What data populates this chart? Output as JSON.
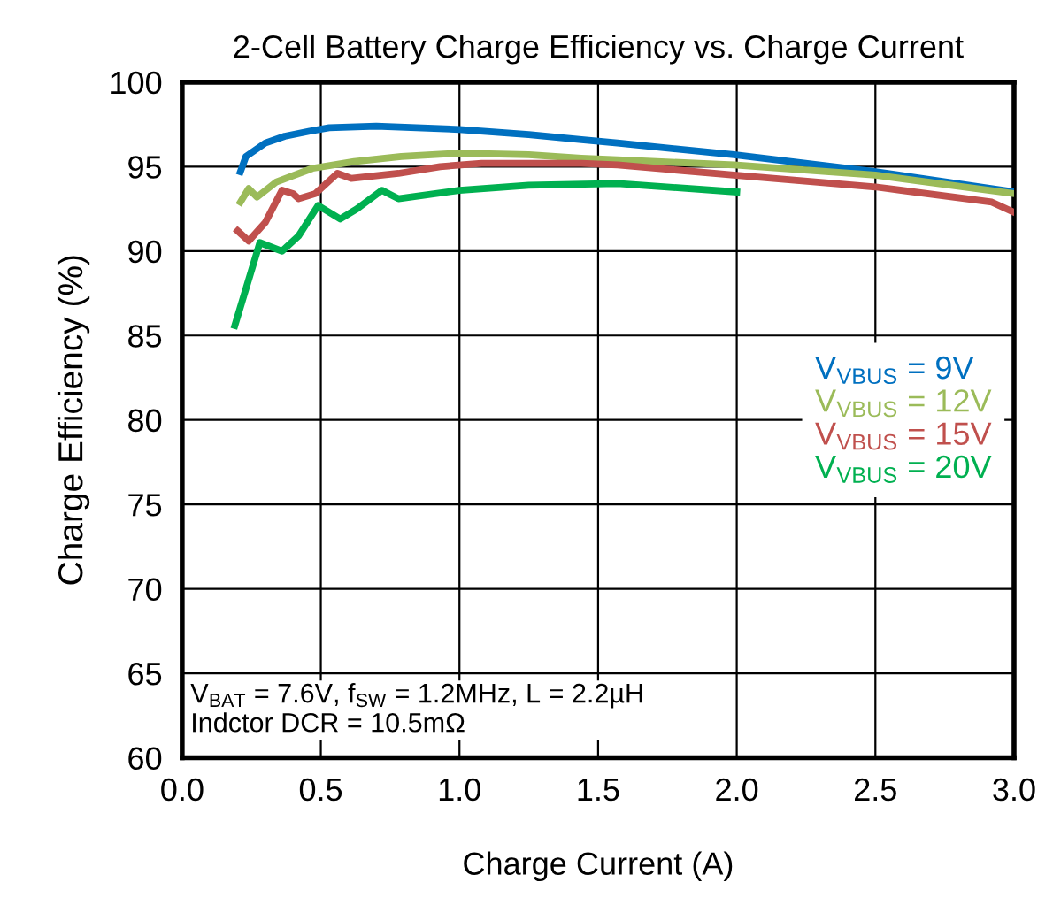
{
  "chart_data": {
    "type": "line",
    "title": "2-Cell Battery Charge Efficiency vs. Charge Current",
    "xlabel": "Charge Current (A)",
    "ylabel": "Charge Efficiency (%)",
    "xlim": [
      0,
      3
    ],
    "xticks": [
      {
        "value": 0,
        "label": "0.0"
      },
      0.5,
      {
        "value": 1,
        "label": "1.0"
      },
      1.5,
      {
        "value": 2,
        "label": "2.0"
      },
      2.5,
      {
        "value": 3,
        "label": "3.0"
      }
    ],
    "ylim": [
      60,
      100
    ],
    "yticks": [
      60,
      65,
      70,
      75,
      80,
      85,
      90,
      95,
      100
    ],
    "grid": true,
    "legend": "right",
    "line_style": "solid",
    "marker": "none",
    "annotations": [
      "V$_{BAT}$ = 7.6V, f$_{SW}$ = 1.2MHz, L = 2.2µH\nIndctor DCR = 10.5mΩ"
    ],
    "series": [
      {
        "name": "V$_{VBUS}$ = 9V",
        "color": "#0070c0",
        "x": [
          0.21,
          0.23,
          0.3,
          0.37,
          0.46,
          0.53,
          0.7,
          1.0,
          1.25,
          1.44,
          1.57,
          1.99,
          2.5,
          3.0
        ],
        "values": [
          94.7,
          95.6,
          96.4,
          96.8,
          97.1,
          97.3,
          97.4,
          97.2,
          96.9,
          96.6,
          96.4,
          95.7,
          94.7,
          93.5
        ]
      },
      {
        "name": "V$_{VBUS}$ = 12V",
        "color": "#9bbb59",
        "x": [
          0.21,
          0.24,
          0.27,
          0.34,
          0.47,
          0.62,
          0.79,
          1.0,
          1.25,
          1.44,
          1.57,
          1.99,
          2.5,
          3.0
        ],
        "values": [
          92.9,
          93.7,
          93.2,
          94.1,
          94.9,
          95.3,
          95.6,
          95.8,
          95.7,
          95.5,
          95.4,
          95.1,
          94.5,
          93.4
        ]
      },
      {
        "name": "V$_{VBUS}$ = 15V",
        "color": "#c0504d",
        "x": [
          0.2,
          0.24,
          0.3,
          0.36,
          0.4,
          0.42,
          0.48,
          0.56,
          0.61,
          0.78,
          0.93,
          1.08,
          1.44,
          1.57,
          1.99,
          2.5,
          2.92,
          3.0
        ],
        "values": [
          91.2,
          90.6,
          91.7,
          93.6,
          93.4,
          93.1,
          93.4,
          94.6,
          94.3,
          94.6,
          95.0,
          95.2,
          95.2,
          95.1,
          94.5,
          93.8,
          92.9,
          92.3
        ]
      },
      {
        "name": "V$_{VBUS}$ = 20V",
        "color": "#00b050",
        "x": [
          0.19,
          0.28,
          0.36,
          0.42,
          0.49,
          0.57,
          0.63,
          0.72,
          0.78,
          1.0,
          1.25,
          1.57,
          2.0
        ],
        "values": [
          85.6,
          90.5,
          90.0,
          90.9,
          92.7,
          91.9,
          92.5,
          93.6,
          93.1,
          93.6,
          93.9,
          94.0,
          93.5
        ]
      }
    ]
  }
}
